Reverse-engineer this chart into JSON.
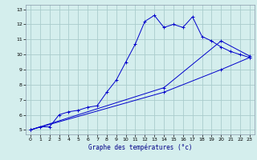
{
  "xlabel": "Graphe des températures (°c)",
  "bg_color": "#d4eeed",
  "grid_color": "#aacccc",
  "line_color": "#0000cc",
  "xlim": [
    -0.5,
    23.5
  ],
  "ylim": [
    4.7,
    13.3
  ],
  "xticks": [
    0,
    1,
    2,
    3,
    4,
    5,
    6,
    7,
    8,
    9,
    10,
    11,
    12,
    13,
    14,
    15,
    16,
    17,
    18,
    19,
    20,
    21,
    22,
    23
  ],
  "yticks": [
    5,
    6,
    7,
    8,
    9,
    10,
    11,
    12,
    13
  ],
  "line1_x": [
    0,
    1,
    2,
    3,
    4,
    5,
    6,
    7,
    8,
    9,
    10,
    11,
    12,
    13,
    14,
    15,
    16,
    17,
    18,
    19,
    20,
    21,
    22,
    23
  ],
  "line1_y": [
    5.0,
    5.2,
    5.2,
    6.0,
    6.2,
    6.3,
    6.5,
    6.6,
    7.5,
    8.3,
    9.5,
    10.7,
    12.2,
    12.6,
    11.8,
    12.0,
    11.8,
    12.5,
    11.2,
    10.9,
    10.5,
    10.2,
    10.0,
    9.8
  ],
  "line2_x": [
    0,
    14,
    20,
    23
  ],
  "line2_y": [
    5.0,
    7.8,
    10.9,
    9.9
  ],
  "line3_x": [
    0,
    14,
    20,
    23
  ],
  "line3_y": [
    5.0,
    7.5,
    9.0,
    9.8
  ],
  "tick_fontsize": 4.5,
  "xlabel_fontsize": 5.5
}
